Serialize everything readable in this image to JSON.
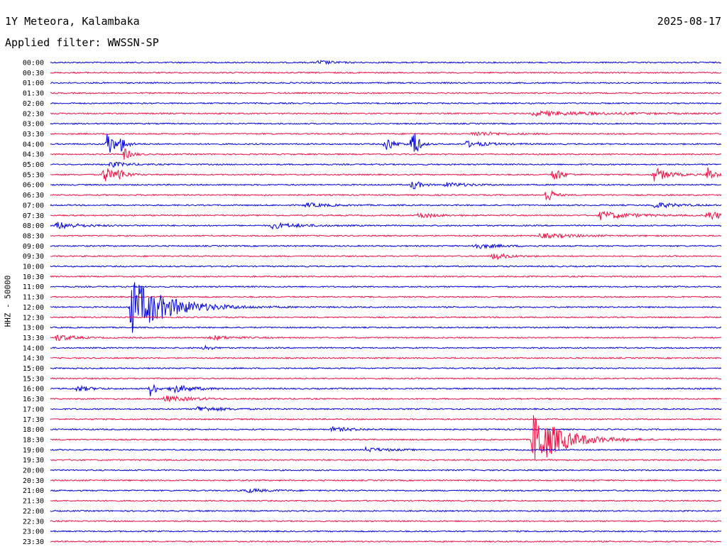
{
  "header": {
    "station": "1Y Meteora, Kalambaka",
    "date": "2025-08-17",
    "filter": "Applied filter: WWSSN-SP"
  },
  "chart_data": {
    "type": "line",
    "title": "1Y Meteora, Kalambaka",
    "ylabel": "HHZ - 50000",
    "colors": [
      "#0000dd",
      "#ee1144"
    ],
    "time_labels": [
      "00:00",
      "00:30",
      "01:00",
      "01:30",
      "02:00",
      "02:30",
      "03:00",
      "03:30",
      "04:00",
      "04:30",
      "05:00",
      "05:30",
      "06:00",
      "06:30",
      "07:00",
      "07:30",
      "08:00",
      "08:30",
      "09:00",
      "09:30",
      "10:00",
      "10:30",
      "11:00",
      "11:30",
      "12:00",
      "12:30",
      "13:00",
      "13:30",
      "14:00",
      "14:30",
      "15:00",
      "15:30",
      "16:00",
      "16:30",
      "17:00",
      "17:30",
      "18:00",
      "18:30",
      "19:00",
      "19:30",
      "20:00",
      "20:30",
      "21:00",
      "21:30",
      "22:00",
      "22:30",
      "23:00",
      "23:30"
    ],
    "events": [
      {
        "trace": 0,
        "at": 0.4,
        "amp": 3,
        "dur": 0.02
      },
      {
        "trace": 5,
        "at": 0.72,
        "amp": 3,
        "dur": 0.1
      },
      {
        "trace": 7,
        "at": 0.63,
        "amp": 3,
        "dur": 0.04
      },
      {
        "trace": 8,
        "at": 0.085,
        "amp": 22,
        "dur": 0.008
      },
      {
        "trace": 8,
        "at": 0.105,
        "amp": 10,
        "dur": 0.008
      },
      {
        "trace": 8,
        "at": 0.5,
        "amp": 12,
        "dur": 0.01
      },
      {
        "trace": 8,
        "at": 0.54,
        "amp": 34,
        "dur": 0.006
      },
      {
        "trace": 8,
        "at": 0.62,
        "amp": 4,
        "dur": 0.03
      },
      {
        "trace": 9,
        "at": 0.11,
        "amp": 8,
        "dur": 0.01
      },
      {
        "trace": 10,
        "at": 0.09,
        "amp": 4,
        "dur": 0.02
      },
      {
        "trace": 11,
        "at": 0.08,
        "amp": 14,
        "dur": 0.01
      },
      {
        "trace": 11,
        "at": 0.1,
        "amp": 10,
        "dur": 0.01
      },
      {
        "trace": 11,
        "at": 0.75,
        "amp": 12,
        "dur": 0.01
      },
      {
        "trace": 11,
        "at": 0.9,
        "amp": 10,
        "dur": 0.02
      },
      {
        "trace": 11,
        "at": 0.98,
        "amp": 12,
        "dur": 0.008
      },
      {
        "trace": 12,
        "at": 0.54,
        "amp": 8,
        "dur": 0.01
      },
      {
        "trace": 12,
        "at": 0.59,
        "amp": 3,
        "dur": 0.03
      },
      {
        "trace": 13,
        "at": 0.74,
        "amp": 14,
        "dur": 0.008
      },
      {
        "trace": 14,
        "at": 0.38,
        "amp": 3,
        "dur": 0.03
      },
      {
        "trace": 14,
        "at": 0.9,
        "amp": 4,
        "dur": 0.03
      },
      {
        "trace": 15,
        "at": 0.55,
        "amp": 4,
        "dur": 0.02
      },
      {
        "trace": 15,
        "at": 0.82,
        "amp": 6,
        "dur": 0.04
      },
      {
        "trace": 15,
        "at": 0.98,
        "amp": 7,
        "dur": 0.02
      },
      {
        "trace": 16,
        "at": 0.01,
        "amp": 5,
        "dur": 0.03
      },
      {
        "trace": 16,
        "at": 0.33,
        "amp": 4,
        "dur": 0.04
      },
      {
        "trace": 17,
        "at": 0.73,
        "amp": 3,
        "dur": 0.05
      },
      {
        "trace": 18,
        "at": 0.63,
        "amp": 4,
        "dur": 0.03
      },
      {
        "trace": 19,
        "at": 0.66,
        "amp": 5,
        "dur": 0.02
      },
      {
        "trace": 24,
        "at": 0.12,
        "amp": 40,
        "dur": 0.05
      },
      {
        "trace": 27,
        "at": 0.01,
        "amp": 5,
        "dur": 0.02
      },
      {
        "trace": 27,
        "at": 0.24,
        "amp": 3,
        "dur": 0.03
      },
      {
        "trace": 28,
        "at": 0.23,
        "amp": 5,
        "dur": 0.008
      },
      {
        "trace": 32,
        "at": 0.04,
        "amp": 4,
        "dur": 0.02
      },
      {
        "trace": 32,
        "at": 0.15,
        "amp": 14,
        "dur": 0.006
      },
      {
        "trace": 32,
        "at": 0.18,
        "amp": 6,
        "dur": 0.03
      },
      {
        "trace": 33,
        "at": 0.17,
        "amp": 4,
        "dur": 0.04
      },
      {
        "trace": 34,
        "at": 0.22,
        "amp": 4,
        "dur": 0.03
      },
      {
        "trace": 36,
        "at": 0.42,
        "amp": 3,
        "dur": 0.03
      },
      {
        "trace": 37,
        "at": 0.72,
        "amp": 40,
        "dur": 0.04
      },
      {
        "trace": 38,
        "at": 0.47,
        "amp": 3,
        "dur": 0.03
      },
      {
        "trace": 42,
        "at": 0.29,
        "amp": 3,
        "dur": 0.03
      }
    ]
  }
}
